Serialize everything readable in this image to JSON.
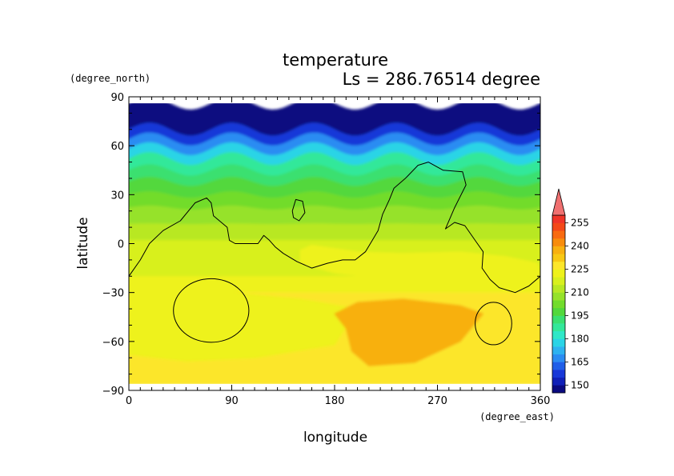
{
  "chart_data": {
    "type": "heatmap",
    "title": "temperature",
    "subtitle": "Ls = 286.76514 degree",
    "xlabel": "longitude",
    "ylabel": "latitude",
    "xunit": "(degree_east)",
    "yunit": "(degree_north)",
    "xlim": [
      0,
      360
    ],
    "ylim": [
      -90,
      90
    ],
    "data_extent": {
      "lon": [
        0,
        360
      ],
      "lat": [
        -86,
        86
      ]
    },
    "xticks": [
      0,
      90,
      180,
      270,
      360
    ],
    "yticks": [
      90,
      60,
      30,
      0,
      -30,
      -60,
      -90
    ],
    "colorbar": {
      "levels": [
        145,
        150,
        155,
        160,
        165,
        170,
        175,
        180,
        185,
        190,
        195,
        200,
        205,
        210,
        215,
        220,
        225,
        230,
        235,
        240,
        245,
        250,
        255,
        260
      ],
      "colors": [
        "#0a0a80",
        "#1020b8",
        "#1838d8",
        "#1f5ee8",
        "#2b8cf2",
        "#2eb2f0",
        "#2ad4e6",
        "#2fe8c8",
        "#33e89a",
        "#3ae070",
        "#52d83c",
        "#72dc2c",
        "#96e22a",
        "#b8e824",
        "#d8f01e",
        "#eef21a",
        "#fce62a",
        "#f8c814",
        "#f8b010",
        "#f88c0c",
        "#f86a10",
        "#f44818",
        "#f03428",
        "#f07070"
      ],
      "tick_labels": [
        "150",
        "165",
        "180",
        "195",
        "210",
        "225",
        "240",
        "255"
      ],
      "has_max_arrow": true
    },
    "base_bands": [
      {
        "lat": 86,
        "temp": 148
      },
      {
        "lat": 76,
        "temp": 149
      },
      {
        "lat": 70,
        "temp": 156
      },
      {
        "lat": 64,
        "temp": 166
      },
      {
        "lat": 58,
        "temp": 176
      },
      {
        "lat": 52,
        "temp": 186
      },
      {
        "lat": 45,
        "temp": 193
      },
      {
        "lat": 38,
        "temp": 199
      },
      {
        "lat": 30,
        "temp": 204
      },
      {
        "lat": 22,
        "temp": 208
      },
      {
        "lat": 12,
        "temp": 212
      },
      {
        "lat": 2,
        "temp": 215
      },
      {
        "lat": -10,
        "temp": 218
      },
      {
        "lat": -20,
        "temp": 222
      },
      {
        "lat": -30,
        "temp": 227
      },
      {
        "lat": -60,
        "temp": 228
      },
      {
        "lat": -86,
        "temp": 228
      }
    ],
    "wave": {
      "amplitude_deg": 4,
      "wavelength_deg": 72
    },
    "warm_regions": [
      {
        "label": "equatorial-east",
        "temp": 222,
        "polygon": [
          [
            160,
            -1
          ],
          [
            200,
            -5
          ],
          [
            240,
            -6
          ],
          [
            290,
            -5
          ],
          [
            330,
            -8
          ],
          [
            358,
            -12
          ],
          [
            360,
            -20
          ],
          [
            300,
            -24
          ],
          [
            230,
            -22
          ],
          [
            180,
            -18
          ],
          [
            150,
            -12
          ],
          [
            150,
            -4
          ]
        ]
      },
      {
        "label": "south-cool",
        "temp": 224,
        "polygon": [
          [
            0,
            -28
          ],
          [
            40,
            -26
          ],
          [
            90,
            -30
          ],
          [
            150,
            -34
          ],
          [
            200,
            -40
          ],
          [
            180,
            -62
          ],
          [
            110,
            -70
          ],
          [
            50,
            -72
          ],
          [
            0,
            -68
          ]
        ]
      },
      {
        "label": "south-hot",
        "temp": 238,
        "polygon": [
          [
            180,
            -43
          ],
          [
            200,
            -36
          ],
          [
            240,
            -34
          ],
          [
            290,
            -38
          ],
          [
            310,
            -43
          ],
          [
            290,
            -60
          ],
          [
            250,
            -73
          ],
          [
            210,
            -75
          ],
          [
            195,
            -66
          ],
          [
            190,
            -52
          ]
        ]
      }
    ],
    "contours": [
      {
        "name": "contour-north",
        "points": [
          [
            0,
            -20
          ],
          [
            10,
            -10
          ],
          [
            18,
            0
          ],
          [
            30,
            8
          ],
          [
            45,
            14
          ],
          [
            58,
            25
          ],
          [
            68,
            28
          ],
          [
            72,
            25
          ],
          [
            74,
            17
          ],
          [
            86,
            10
          ],
          [
            88,
            2
          ],
          [
            93,
            0
          ],
          [
            113,
            0
          ],
          [
            118,
            5
          ],
          [
            123,
            2
          ],
          [
            128,
            -2
          ],
          [
            135,
            -6
          ],
          [
            147,
            -11
          ],
          [
            160,
            -15
          ],
          [
            174,
            -12
          ],
          [
            187,
            -10
          ],
          [
            198,
            -10
          ],
          [
            207,
            -5
          ],
          [
            213,
            2
          ],
          [
            218,
            8
          ],
          [
            222,
            18
          ],
          [
            228,
            27
          ],
          [
            232,
            34
          ],
          [
            242,
            40
          ],
          [
            253,
            48
          ],
          [
            262,
            50
          ],
          [
            275,
            45
          ],
          [
            292,
            44
          ],
          [
            295,
            36
          ],
          [
            285,
            22
          ],
          [
            277,
            9
          ],
          [
            285,
            13
          ],
          [
            294,
            11
          ],
          [
            304,
            1
          ],
          [
            310,
            -5
          ],
          [
            309,
            -15
          ],
          [
            316,
            -22
          ],
          [
            324,
            -27
          ],
          [
            338,
            -30
          ],
          [
            350,
            -26
          ],
          [
            360,
            -20
          ]
        ]
      },
      {
        "name": "contour-island",
        "points": [
          [
            143,
            20
          ],
          [
            146,
            27
          ],
          [
            152,
            26
          ],
          [
            154,
            19
          ],
          [
            149,
            14
          ],
          [
            144,
            16
          ],
          [
            143,
            20
          ]
        ]
      },
      {
        "name": "contour-oval-left",
        "closed": true,
        "cx": 72,
        "cy": -41,
        "rx": 33,
        "ry": 19.5
      },
      {
        "name": "contour-oval-right",
        "closed": true,
        "cx": 319,
        "cy": -49,
        "rx": 16,
        "ry": 13
      }
    ]
  }
}
